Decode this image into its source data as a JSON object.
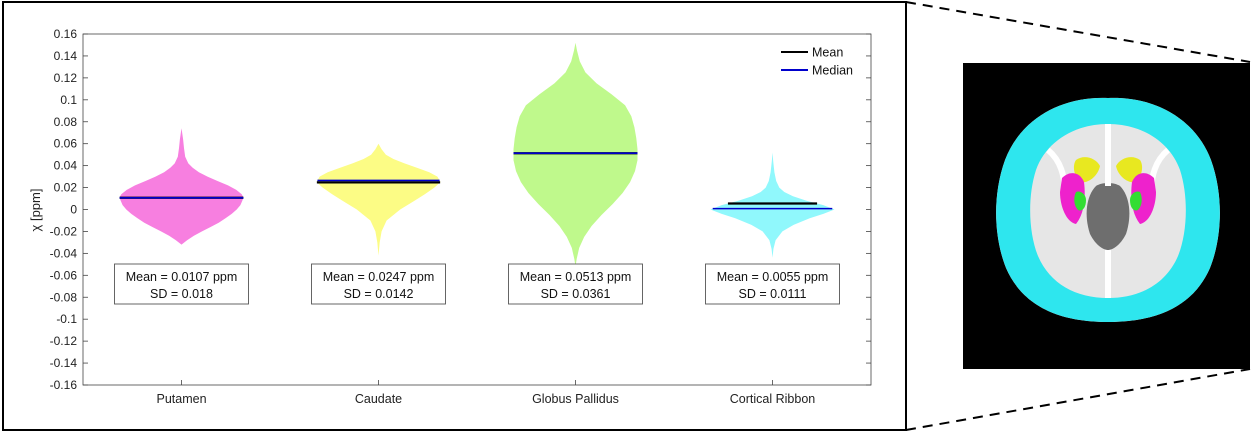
{
  "chart_data": {
    "type": "violin",
    "categories": [
      "Putamen",
      "Caudate",
      "Globus Pallidus",
      "Cortical Ribbon"
    ],
    "ylabel": "χ [ppm]",
    "ylim": [
      -0.16,
      0.16
    ],
    "yticks": [
      0.16,
      0.14,
      0.12,
      0.1,
      0.08,
      0.06,
      0.04,
      0.02,
      0,
      -0.02,
      -0.04,
      -0.06,
      -0.08,
      -0.1,
      -0.12,
      -0.14,
      -0.16
    ],
    "ytick_labels": [
      "0.16",
      "0.14",
      "0.12",
      "0.1",
      "0.08",
      "0.06",
      "0.04",
      "0.02",
      "0",
      "-0.02",
      "-0.04",
      "-0.06",
      "-0.08",
      "-0.1",
      "-0.12",
      "-0.14",
      "-0.16"
    ],
    "grid": false,
    "legend": {
      "placement": "top-right",
      "entries": [
        {
          "label": "Mean",
          "color": "#000000"
        },
        {
          "label": "Median",
          "color": "#0000cc"
        }
      ]
    },
    "series": [
      {
        "category": "Putamen",
        "color": "#f77fe0",
        "mean": 0.0107,
        "median": 0.0107,
        "min": -0.032,
        "max": 0.074,
        "profile": [
          [
            -0.032,
            0.0
          ],
          [
            -0.028,
            0.09
          ],
          [
            -0.024,
            0.2
          ],
          [
            -0.02,
            0.33
          ],
          [
            -0.016,
            0.47
          ],
          [
            -0.012,
            0.6
          ],
          [
            -0.008,
            0.71
          ],
          [
            -0.004,
            0.81
          ],
          [
            0.0,
            0.89
          ],
          [
            0.004,
            0.95
          ],
          [
            0.008,
            0.98
          ],
          [
            0.011,
            1.0
          ],
          [
            0.014,
            0.97
          ],
          [
            0.018,
            0.88
          ],
          [
            0.022,
            0.75
          ],
          [
            0.026,
            0.58
          ],
          [
            0.03,
            0.42
          ],
          [
            0.034,
            0.28
          ],
          [
            0.038,
            0.18
          ],
          [
            0.042,
            0.11
          ],
          [
            0.048,
            0.06
          ],
          [
            0.056,
            0.04
          ],
          [
            0.064,
            0.025
          ],
          [
            0.074,
            0.0
          ]
        ],
        "stats_label": "Mean = 0.0107 ppm",
        "sd_label": "SD = 0.018"
      },
      {
        "category": "Caudate",
        "color": "#fcfc85",
        "mean": 0.0247,
        "median": 0.0265,
        "min": -0.042,
        "max": 0.06,
        "profile": [
          [
            -0.042,
            0.0
          ],
          [
            -0.03,
            0.02
          ],
          [
            -0.02,
            0.05
          ],
          [
            -0.01,
            0.13
          ],
          [
            0.0,
            0.35
          ],
          [
            0.008,
            0.58
          ],
          [
            0.014,
            0.75
          ],
          [
            0.02,
            0.9
          ],
          [
            0.025,
            1.0
          ],
          [
            0.03,
            0.95
          ],
          [
            0.034,
            0.82
          ],
          [
            0.038,
            0.62
          ],
          [
            0.042,
            0.42
          ],
          [
            0.046,
            0.24
          ],
          [
            0.05,
            0.12
          ],
          [
            0.055,
            0.05
          ],
          [
            0.06,
            0.0
          ]
        ],
        "stats_label": "Mean = 0.0247 ppm",
        "sd_label": "SD = 0.0142"
      },
      {
        "category": "Globus Pallidus",
        "color": "#bff98c",
        "mean": 0.0513,
        "median": 0.0513,
        "min": -0.052,
        "max": 0.152,
        "profile": [
          [
            -0.052,
            0.0
          ],
          [
            -0.045,
            0.02
          ],
          [
            -0.035,
            0.06
          ],
          [
            -0.025,
            0.14
          ],
          [
            -0.015,
            0.26
          ],
          [
            -0.005,
            0.42
          ],
          [
            0.005,
            0.6
          ],
          [
            0.015,
            0.76
          ],
          [
            0.025,
            0.88
          ],
          [
            0.035,
            0.96
          ],
          [
            0.045,
            1.0
          ],
          [
            0.055,
            1.0
          ],
          [
            0.065,
            0.98
          ],
          [
            0.075,
            0.95
          ],
          [
            0.085,
            0.9
          ],
          [
            0.095,
            0.8
          ],
          [
            0.105,
            0.58
          ],
          [
            0.115,
            0.34
          ],
          [
            0.125,
            0.16
          ],
          [
            0.135,
            0.07
          ],
          [
            0.145,
            0.025
          ],
          [
            0.152,
            0.0
          ]
        ],
        "stats_label": "Mean = 0.0513 ppm",
        "sd_label": "SD = 0.0361"
      },
      {
        "category": "Cortical Ribbon",
        "color": "#90f8fc",
        "mean": 0.0055,
        "median": 0.0008,
        "min": -0.044,
        "max": 0.052,
        "profile": [
          [
            -0.044,
            0.0
          ],
          [
            -0.036,
            0.015
          ],
          [
            -0.028,
            0.05
          ],
          [
            -0.02,
            0.16
          ],
          [
            -0.014,
            0.34
          ],
          [
            -0.008,
            0.6
          ],
          [
            -0.004,
            0.82
          ],
          [
            0.0,
            1.0
          ],
          [
            0.004,
            0.82
          ],
          [
            0.008,
            0.55
          ],
          [
            0.012,
            0.33
          ],
          [
            0.016,
            0.19
          ],
          [
            0.02,
            0.11
          ],
          [
            0.026,
            0.06
          ],
          [
            0.034,
            0.03
          ],
          [
            0.044,
            0.012
          ],
          [
            0.052,
            0.0
          ]
        ],
        "stats_label": "Mean = 0.0055 ppm",
        "sd_label": "SD = 0.0111"
      }
    ]
  },
  "brain_image": {
    "background": "#000000",
    "region_colors": {
      "cortical_ribbon": "#2ee6ee",
      "caudate": "#e8e820",
      "putamen": "#ee22cc",
      "globus_pallidus": "#33dd33"
    }
  }
}
